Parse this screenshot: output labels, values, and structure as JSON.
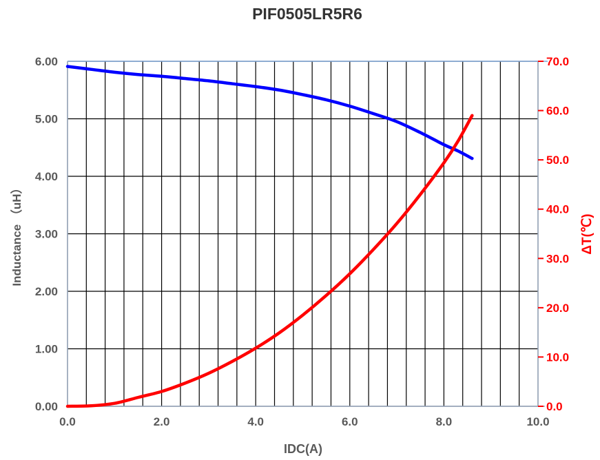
{
  "chart_data": {
    "type": "line",
    "title": "PIF0505LR5R6",
    "xlabel": "IDC(A)",
    "ylabel": "Inductance （uH）",
    "y2label": "ΔT(℃)",
    "xlim": [
      0,
      10
    ],
    "ylim": [
      0,
      6
    ],
    "y2lim": [
      0,
      70
    ],
    "x_ticks": [
      "0.0",
      "2.0",
      "4.0",
      "6.0",
      "8.0",
      "10.0"
    ],
    "y_ticks": [
      "0.00",
      "1.00",
      "2.00",
      "3.00",
      "4.00",
      "5.00",
      "6.00"
    ],
    "y2_ticks": [
      "0.0",
      "10.0",
      "20.0",
      "30.0",
      "40.0",
      "50.0",
      "60.0",
      "70.0"
    ],
    "grid": true,
    "series": [
      {
        "axis": "left",
        "color": "#0000ff",
        "x": [
          0,
          0.5,
          1.0,
          1.5,
          2.0,
          2.5,
          3.0,
          3.5,
          4.0,
          4.5,
          5.0,
          5.5,
          6.0,
          6.5,
          7.0,
          7.5,
          8.0,
          8.3,
          8.6
        ],
        "y": [
          5.91,
          5.86,
          5.81,
          5.77,
          5.74,
          5.7,
          5.66,
          5.61,
          5.56,
          5.5,
          5.42,
          5.33,
          5.22,
          5.09,
          4.95,
          4.76,
          4.55,
          4.44,
          4.31
        ]
      },
      {
        "axis": "right",
        "color": "#ff0000",
        "x": [
          0,
          0.5,
          1.0,
          1.5,
          2.0,
          2.5,
          3.0,
          3.5,
          4.0,
          4.5,
          5.0,
          5.5,
          6.0,
          6.5,
          7.0,
          7.5,
          8.0,
          8.3,
          8.6
        ],
        "y": [
          0,
          0.1,
          0.6,
          1.8,
          3.0,
          4.7,
          6.7,
          9.1,
          11.8,
          14.9,
          18.5,
          22.5,
          26.9,
          31.8,
          37.1,
          43.0,
          49.4,
          53.8,
          59.0
        ]
      }
    ]
  }
}
